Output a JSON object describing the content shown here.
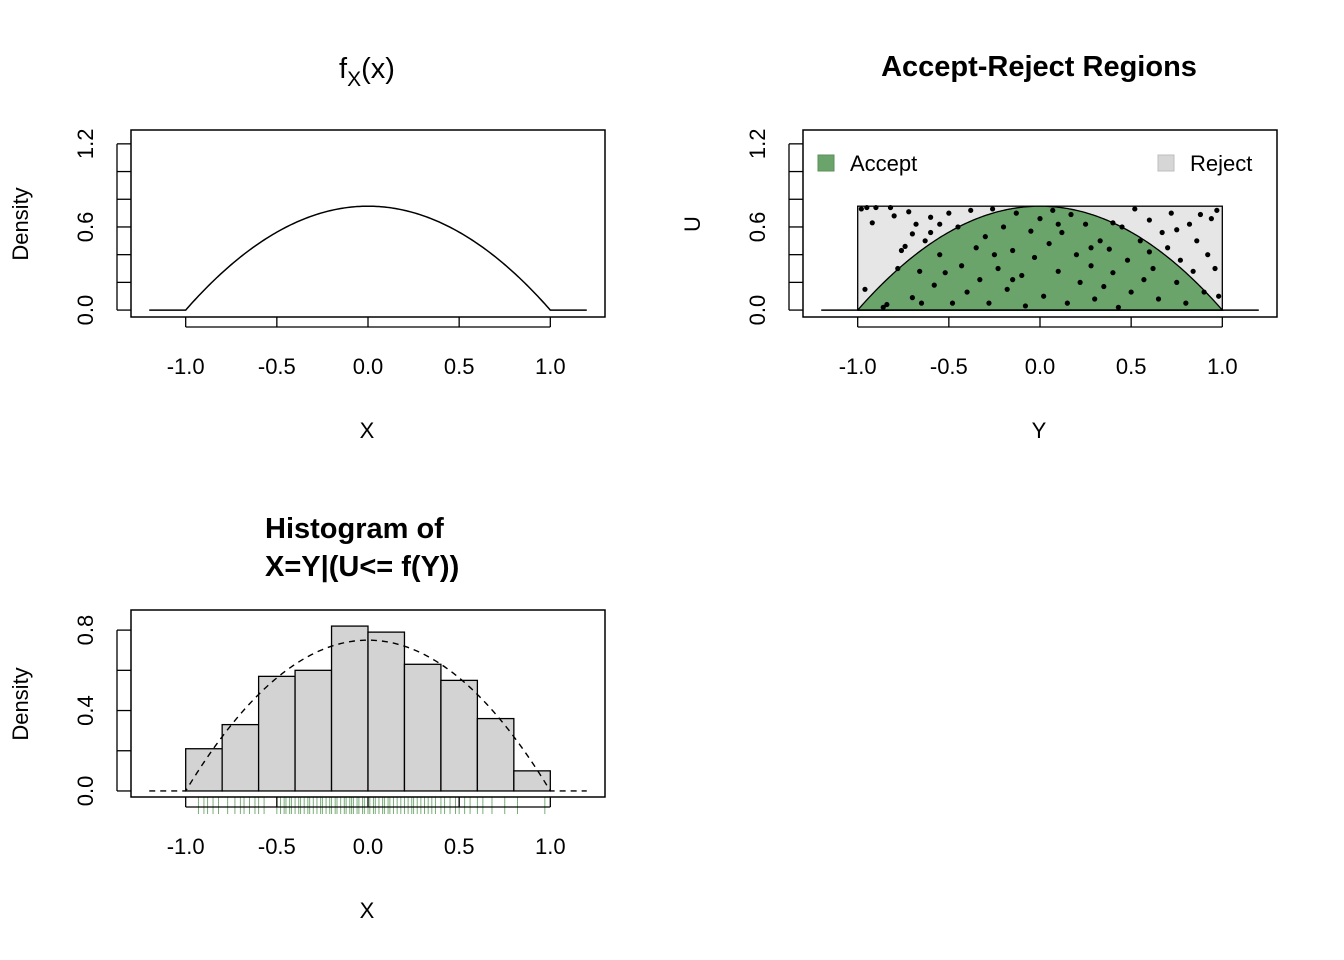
{
  "chart_data": [
    {
      "type": "line",
      "title_main": "f",
      "title_sub": "X",
      "title_arg": "(x)",
      "xlabel": "X",
      "ylabel": "Density",
      "xlim": [
        -1.3,
        1.3
      ],
      "ylim": [
        -0.05,
        1.3
      ],
      "x_ticks": [
        -1.0,
        -0.5,
        0.0,
        0.5,
        1.0
      ],
      "x_tick_labels": [
        "-1.0",
        "-0.5",
        "0.0",
        "0.5",
        "1.0"
      ],
      "y_ticks": [
        0.0,
        0.2,
        0.4,
        0.6,
        0.8,
        1.0,
        1.2
      ],
      "y_tick_labels": [
        "0.0",
        "",
        "",
        "0.6",
        "",
        "",
        "1.2"
      ],
      "series": [
        {
          "function": "0.75*(1-x^2) for |x|<=1, else 0",
          "x": [
            -1.2,
            -1.0,
            -0.8,
            -0.6,
            -0.4,
            -0.2,
            0.0,
            0.2,
            0.4,
            0.6,
            0.8,
            1.0,
            1.2
          ],
          "y": [
            0,
            0,
            0.27,
            0.48,
            0.63,
            0.72,
            0.75,
            0.72,
            0.63,
            0.48,
            0.27,
            0,
            0
          ]
        }
      ]
    },
    {
      "type": "scatter",
      "title": "Accept-Reject Regions",
      "xlabel": "Y",
      "ylabel": "U",
      "xlim": [
        -1.3,
        1.3
      ],
      "ylim": [
        -0.05,
        1.3
      ],
      "x_ticks": [
        -1.0,
        -0.5,
        0.0,
        0.5,
        1.0
      ],
      "x_tick_labels": [
        "-1.0",
        "-0.5",
        "0.0",
        "0.5",
        "1.0"
      ],
      "y_ticks": [
        0.0,
        0.2,
        0.4,
        0.6,
        0.8,
        1.0,
        1.2
      ],
      "y_tick_labels": [
        "0.0",
        "",
        "",
        "0.6",
        "",
        "",
        "1.2"
      ],
      "legend": [
        {
          "label": "Accept",
          "color": "#6aa46a",
          "position": "top-left"
        },
        {
          "label": "Reject",
          "color": "#d6d6d6",
          "position": "top-right"
        }
      ],
      "reject_region": {
        "xmin": -1.0,
        "xmax": 1.0,
        "ymin": 0.0,
        "ymax": 0.75,
        "color": "#e6e6e6"
      },
      "accept_region": {
        "function": "0.75*(1-x^2)",
        "color": "#6aa46a"
      },
      "points": [
        [
          -0.98,
          0.73
        ],
        [
          -0.96,
          0.15
        ],
        [
          -0.95,
          0.74
        ],
        [
          -0.9,
          0.74
        ],
        [
          -0.86,
          0.02
        ],
        [
          -0.84,
          0.04
        ],
        [
          -0.82,
          0.74
        ],
        [
          -0.8,
          0.68
        ],
        [
          -0.78,
          0.3
        ],
        [
          -0.76,
          0.43
        ],
        [
          -0.74,
          0.46
        ],
        [
          -0.72,
          0.71
        ],
        [
          -0.7,
          0.55
        ],
        [
          -0.7,
          0.09
        ],
        [
          -0.68,
          0.62
        ],
        [
          -0.66,
          0.28
        ],
        [
          -0.65,
          0.05
        ],
        [
          -0.63,
          0.5
        ],
        [
          -0.6,
          0.67
        ],
        [
          -0.58,
          0.18
        ],
        [
          -0.55,
          0.4
        ],
        [
          -0.52,
          0.27
        ],
        [
          -0.5,
          0.7
        ],
        [
          -0.48,
          0.05
        ],
        [
          -0.45,
          0.6
        ],
        [
          -0.43,
          0.32
        ],
        [
          -0.4,
          0.13
        ],
        [
          -0.38,
          0.72
        ],
        [
          -0.35,
          0.45
        ],
        [
          -0.33,
          0.22
        ],
        [
          -0.3,
          0.53
        ],
        [
          -0.28,
          0.05
        ],
        [
          -0.26,
          0.73
        ],
        [
          -0.23,
          0.3
        ],
        [
          -0.2,
          0.6
        ],
        [
          -0.18,
          0.15
        ],
        [
          -0.15,
          0.43
        ],
        [
          -0.13,
          0.7
        ],
        [
          -0.1,
          0.25
        ],
        [
          -0.08,
          0.03
        ],
        [
          -0.05,
          0.57
        ],
        [
          -0.03,
          0.38
        ],
        [
          0.0,
          0.66
        ],
        [
          0.02,
          0.1
        ],
        [
          0.05,
          0.48
        ],
        [
          0.07,
          0.72
        ],
        [
          0.1,
          0.28
        ],
        [
          0.12,
          0.56
        ],
        [
          0.15,
          0.05
        ],
        [
          0.17,
          0.69
        ],
        [
          0.2,
          0.4
        ],
        [
          0.22,
          0.2
        ],
        [
          0.25,
          0.62
        ],
        [
          0.28,
          0.32
        ],
        [
          0.3,
          0.08
        ],
        [
          0.33,
          0.5
        ],
        [
          0.35,
          0.17
        ],
        [
          0.38,
          0.44
        ],
        [
          0.4,
          0.27
        ],
        [
          0.43,
          0.02
        ],
        [
          0.45,
          0.6
        ],
        [
          0.48,
          0.36
        ],
        [
          0.5,
          0.13
        ],
        [
          0.52,
          0.73
        ],
        [
          0.55,
          0.5
        ],
        [
          0.57,
          0.22
        ],
        [
          0.6,
          0.65
        ],
        [
          0.62,
          0.3
        ],
        [
          0.65,
          0.08
        ],
        [
          0.67,
          0.56
        ],
        [
          0.7,
          0.45
        ],
        [
          0.72,
          0.7
        ],
        [
          0.75,
          0.2
        ],
        [
          0.77,
          0.36
        ],
        [
          0.8,
          0.05
        ],
        [
          0.82,
          0.62
        ],
        [
          0.84,
          0.28
        ],
        [
          0.86,
          0.5
        ],
        [
          0.88,
          0.69
        ],
        [
          0.9,
          0.13
        ],
        [
          0.92,
          0.4
        ],
        [
          0.94,
          0.66
        ],
        [
          0.96,
          0.3
        ],
        [
          0.97,
          0.72
        ],
        [
          0.98,
          0.1
        ],
        [
          -0.92,
          0.63
        ],
        [
          -0.6,
          0.56
        ],
        [
          -0.55,
          0.62
        ],
        [
          -0.25,
          0.4
        ],
        [
          0.1,
          0.62
        ],
        [
          0.4,
          0.63
        ],
        [
          0.6,
          0.42
        ],
        [
          0.75,
          0.58
        ],
        [
          -0.15,
          0.22
        ],
        [
          0.28,
          0.45
        ]
      ]
    },
    {
      "type": "bar",
      "title_lines": [
        "Histogram of",
        "X=Y|(U<= f(Y))"
      ],
      "xlabel": "X",
      "ylabel": "Density",
      "xlim": [
        -1.3,
        1.3
      ],
      "ylim": [
        -0.03,
        0.9
      ],
      "x_ticks": [
        -1.0,
        -0.5,
        0.0,
        0.5,
        1.0
      ],
      "x_tick_labels": [
        "-1.0",
        "-0.5",
        "0.0",
        "0.5",
        "1.0"
      ],
      "y_ticks": [
        0.0,
        0.2,
        0.4,
        0.6,
        0.8
      ],
      "y_tick_labels": [
        "0.0",
        "",
        "0.4",
        "",
        "0.8"
      ],
      "bin_edges": [
        -1.0,
        -0.8,
        -0.6,
        -0.4,
        -0.2,
        0.0,
        0.2,
        0.4,
        0.6,
        0.8,
        1.0
      ],
      "values": [
        0.21,
        0.33,
        0.57,
        0.6,
        0.82,
        0.79,
        0.63,
        0.55,
        0.36,
        0.1
      ],
      "bar_color": "#d3d3d3",
      "density_curve": "0.75*(1-x^2), dashed",
      "rug_color": "#1f7a1f",
      "rug": [
        -0.93,
        -0.9,
        -0.88,
        -0.85,
        -0.82,
        -0.77,
        -0.73,
        -0.7,
        -0.68,
        -0.65,
        -0.62,
        -0.6,
        -0.57,
        -0.5,
        -0.48,
        -0.46,
        -0.45,
        -0.43,
        -0.42,
        -0.4,
        -0.38,
        -0.37,
        -0.35,
        -0.33,
        -0.32,
        -0.3,
        -0.28,
        -0.26,
        -0.25,
        -0.23,
        -0.21,
        -0.2,
        -0.18,
        -0.17,
        -0.15,
        -0.13,
        -0.12,
        -0.1,
        -0.09,
        -0.08,
        -0.06,
        -0.05,
        -0.03,
        -0.02,
        0.0,
        0.01,
        0.03,
        0.04,
        0.06,
        0.08,
        0.09,
        0.11,
        0.12,
        0.14,
        0.16,
        0.18,
        0.2,
        0.22,
        0.24,
        0.25,
        0.27,
        0.29,
        0.31,
        0.33,
        0.35,
        0.37,
        0.4,
        0.42,
        0.45,
        0.48,
        0.5,
        0.53,
        0.56,
        0.6,
        0.63,
        0.68,
        0.75,
        0.82,
        0.97
      ]
    }
  ]
}
